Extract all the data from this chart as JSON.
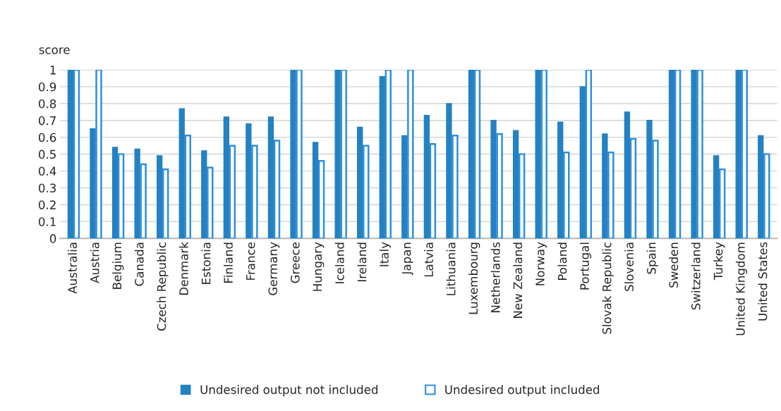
{
  "chart_data": {
    "type": "bar",
    "ylabel": "score",
    "categories": [
      "Australia",
      "Austria",
      "Belgium",
      "Canada",
      "Czech Republic",
      "Denmark",
      "Estonia",
      "Finland",
      "France",
      "Germany",
      "Greece",
      "Hungary",
      "Iceland",
      "Ireland",
      "Italy",
      "Japan",
      "Latvia",
      "Lithuania",
      "Luxembourg",
      "Netherlands",
      "New Zealand",
      "Norway",
      "Poland",
      "Portugal",
      "Slovak Republic",
      "Slovenia",
      "Spain",
      "Sweden",
      "Switzerland",
      "Turkey",
      "United Kingdom",
      "United States"
    ],
    "series": [
      {
        "name": "Undesired output not included",
        "color": "#2481c2",
        "values": [
          1,
          0.65,
          0.54,
          0.53,
          0.49,
          0.77,
          0.52,
          0.72,
          0.68,
          0.72,
          1,
          0.57,
          1,
          0.66,
          0.96,
          0.61,
          0.73,
          0.8,
          1,
          0.7,
          0.64,
          1,
          0.69,
          0.9,
          0.62,
          0.75,
          0.7,
          1,
          1,
          0.49,
          1,
          0.61
        ]
      },
      {
        "name": "Undesired output included",
        "color": "#2e8fdc",
        "values": [
          1,
          1,
          0.5,
          0.44,
          0.41,
          0.61,
          0.42,
          0.55,
          0.55,
          0.58,
          1,
          0.46,
          1,
          0.55,
          1,
          1,
          0.56,
          0.61,
          1,
          0.62,
          0.5,
          1,
          0.51,
          1,
          0.51,
          0.59,
          0.58,
          1,
          1,
          0.41,
          1,
          0.5
        ]
      }
    ],
    "ylim": [
      0,
      1
    ],
    "yticks": [
      0,
      0.1,
      0.2,
      0.3,
      0.4,
      0.5,
      0.6,
      0.7,
      0.8,
      0.9,
      1
    ],
    "grid": "y",
    "legend": "bottom"
  }
}
